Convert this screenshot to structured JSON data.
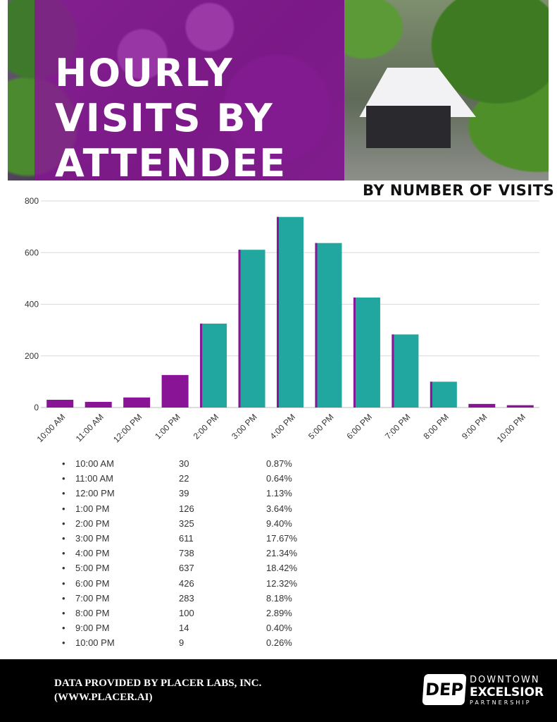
{
  "header": {
    "title": "HOURLY VISITS BY ATTENDEE",
    "subtitle": "BY NUMBER OF VISITS"
  },
  "colors": {
    "purple": "#8a1496",
    "teal": "#22a6a0",
    "footer_bg": "#000000"
  },
  "chart_data": {
    "type": "bar",
    "title": "",
    "xlabel": "",
    "ylabel": "",
    "ylim": [
      0,
      800
    ],
    "yticks": [
      0,
      200,
      400,
      600,
      800
    ],
    "grid": true,
    "categories": [
      "10:00 AM",
      "11:00 AM",
      "12:00 PM",
      "1:00 PM",
      "2:00 PM",
      "3:00 PM",
      "4:00 PM",
      "5:00 PM",
      "6:00 PM",
      "7:00 PM",
      "8:00 PM",
      "9:00 PM",
      "10:00 PM"
    ],
    "values": [
      30,
      22,
      39,
      126,
      325,
      611,
      738,
      637,
      426,
      283,
      100,
      14,
      9
    ],
    "bar_colors": [
      "purple",
      "purple",
      "purple",
      "purple",
      "teal",
      "teal",
      "teal",
      "teal",
      "teal",
      "teal",
      "teal",
      "purple",
      "purple"
    ]
  },
  "table": {
    "rows": [
      {
        "time": "10:00 AM",
        "visits": "30",
        "pct": "0.87%"
      },
      {
        "time": "11:00 AM",
        "visits": "22",
        "pct": "0.64%"
      },
      {
        "time": "12:00 PM",
        "visits": "39",
        "pct": "1.13%"
      },
      {
        "time": "1:00 PM",
        "visits": "126",
        "pct": "3.64%"
      },
      {
        "time": "2:00 PM",
        "visits": "325",
        "pct": "9.40%"
      },
      {
        "time": "3:00 PM",
        "visits": "611",
        "pct": "17.67%"
      },
      {
        "time": "4:00 PM",
        "visits": "738",
        "pct": "21.34%"
      },
      {
        "time": " 5:00 PM",
        "visits": "637",
        "pct": "18.42%"
      },
      {
        "time": "6:00 PM",
        "visits": "426",
        "pct": "12.32%"
      },
      {
        "time": "7:00 PM",
        "visits": "283",
        "pct": "8.18%"
      },
      {
        "time": "8:00 PM",
        "visits": "100",
        "pct": "2.89%"
      },
      {
        "time": "9:00 PM",
        "visits": "14",
        "pct": "0.40%"
      },
      {
        "time": "10:00 PM",
        "visits": "9",
        "pct": "0.26%"
      }
    ]
  },
  "footer": {
    "credit_line1": "DATA PROVIDED BY PLACER LABS, INC.",
    "credit_line2": "(WWW.PLACER.AI)",
    "logo": {
      "badge": "DEP",
      "line1": "DOWNTOWN",
      "line2": "EXCELSIOR",
      "line3": "PARTNERSHIP"
    }
  }
}
